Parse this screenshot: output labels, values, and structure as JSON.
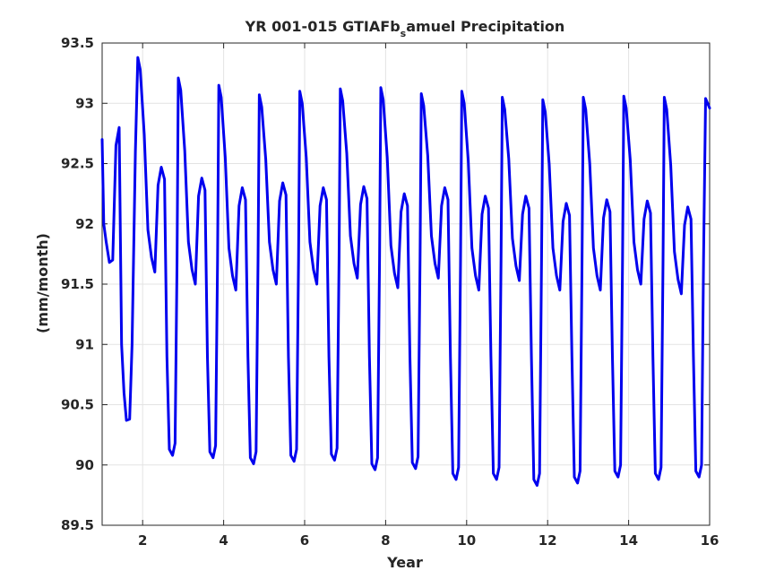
{
  "chart_data": {
    "type": "line",
    "title_main": "YR 001-015 GTIAFb",
    "title_sub": "s",
    "title_end": "amuel Precipitation",
    "xlabel": "Year",
    "ylabel": "(mm/month)",
    "xlim": [
      1,
      16
    ],
    "ylim": [
      89.5,
      93.5
    ],
    "xticks": [
      2,
      4,
      6,
      8,
      10,
      12,
      14,
      16
    ],
    "yticks": [
      89.5,
      90,
      90.5,
      91,
      91.5,
      92,
      92.5,
      93,
      93.5
    ],
    "grid": true,
    "line_color": "#0000ee",
    "monthly_shape": [
      0.0,
      -0.85,
      -0.65,
      -0.6,
      -0.25,
      0.0,
      -2.9,
      -3.1,
      -3.1,
      -0.3,
      0.75,
      0.7
    ],
    "years": [
      {
        "year": 1,
        "start": 92.7,
        "apr": 91.68,
        "peak2": 92.8,
        "trough": 90.37,
        "mar": 91.6
      },
      {
        "year": 2,
        "peak": 93.38,
        "mar": 91.6,
        "peak2": 92.47,
        "trough": 90.08
      },
      {
        "year": 3,
        "peak": 93.21,
        "mar": 91.5,
        "peak2": 92.38,
        "trough": 90.06
      },
      {
        "year": 4,
        "peak": 93.15,
        "mar": 91.45,
        "peak2": 92.3,
        "trough": 90.01
      },
      {
        "year": 5,
        "peak": 93.07,
        "mar": 91.5,
        "peak2": 92.34,
        "trough": 90.03
      },
      {
        "year": 6,
        "peak": 93.1,
        "mar": 91.5,
        "peak2": 92.3,
        "trough": 90.04
      },
      {
        "year": 7,
        "peak": 93.12,
        "mar": 91.55,
        "peak2": 92.31,
        "trough": 89.96
      },
      {
        "year": 8,
        "peak": 93.13,
        "mar": 91.47,
        "peak2": 92.25,
        "trough": 89.97
      },
      {
        "year": 9,
        "peak": 93.08,
        "mar": 91.55,
        "peak2": 92.3,
        "trough": 89.88
      },
      {
        "year": 10,
        "peak": 93.1,
        "mar": 91.45,
        "peak2": 92.23,
        "trough": 89.88
      },
      {
        "year": 11,
        "peak": 93.05,
        "mar": 91.53,
        "peak2": 92.23,
        "trough": 89.83
      },
      {
        "year": 12,
        "peak": 93.03,
        "mar": 91.45,
        "peak2": 92.17,
        "trough": 89.85
      },
      {
        "year": 13,
        "peak": 93.05,
        "mar": 91.45,
        "peak2": 92.2,
        "trough": 89.9
      },
      {
        "year": 14,
        "peak": 93.06,
        "mar": 91.5,
        "peak2": 92.19,
        "trough": 89.88
      },
      {
        "year": 15,
        "peak": 93.05,
        "mar": 91.42,
        "peak2": 92.14,
        "trough": 89.9
      },
      {
        "year": 16,
        "peak": 93.04,
        "end": 92.96
      }
    ]
  }
}
